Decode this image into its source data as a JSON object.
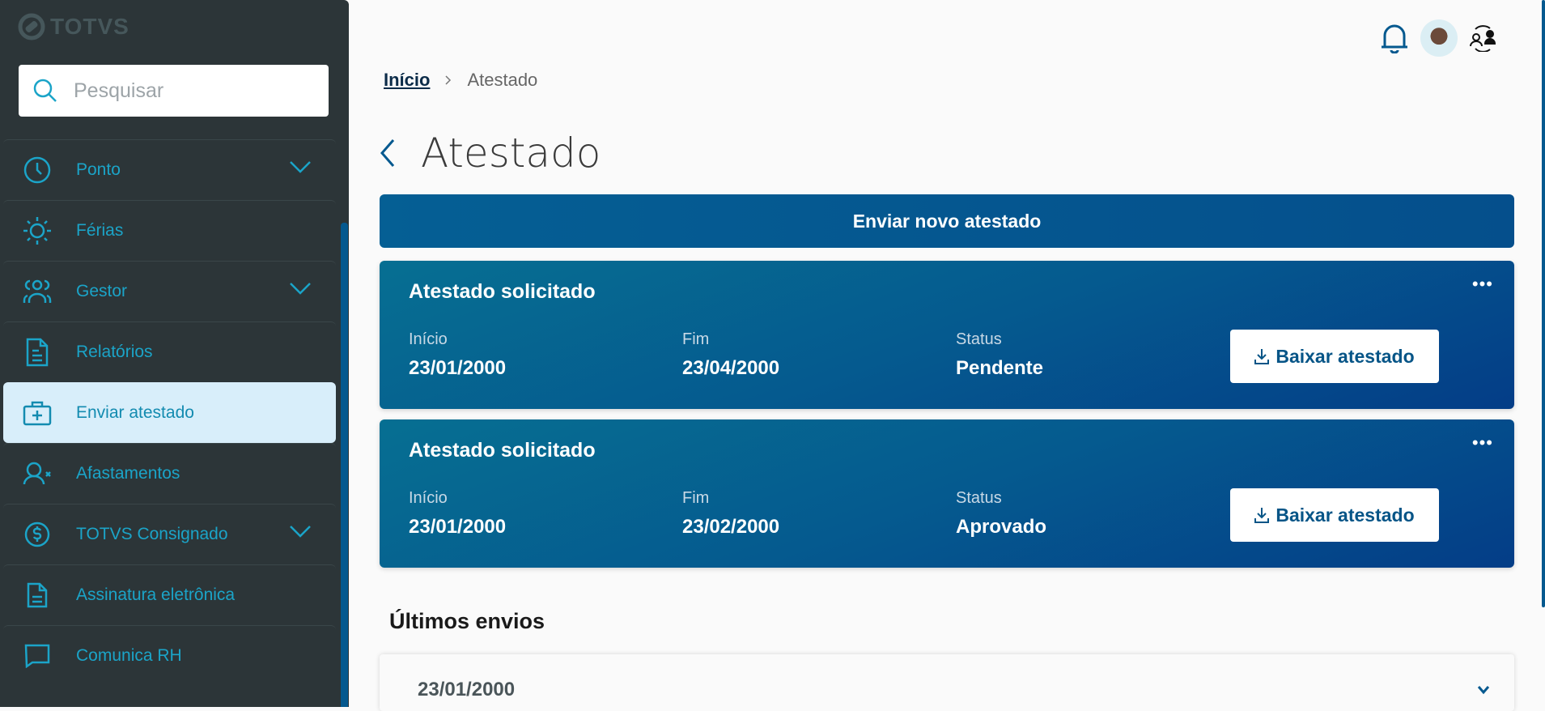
{
  "sidebar": {
    "logo": "TOTVS",
    "search_placeholder": "Pesquisar",
    "items": [
      {
        "label": "Ponto",
        "icon": "clock-icon",
        "expandable": true
      },
      {
        "label": "Férias",
        "icon": "sun-icon",
        "expandable": false
      },
      {
        "label": "Gestor",
        "icon": "group-icon",
        "expandable": true
      },
      {
        "label": "Relatórios",
        "icon": "document-icon",
        "expandable": false
      },
      {
        "label": "Enviar atestado",
        "icon": "medical-kit-icon",
        "expandable": false,
        "active": true
      },
      {
        "label": "Afastamentos",
        "icon": "user-remove-icon",
        "expandable": false
      },
      {
        "label": "TOTVS Consignado",
        "icon": "dollar-circle-icon",
        "expandable": true
      },
      {
        "label": "Assinatura eletrônica",
        "icon": "signature-document-icon",
        "expandable": false
      },
      {
        "label": "Comunica RH",
        "icon": "chat-icon",
        "expandable": false
      }
    ]
  },
  "header": {
    "icons": [
      "bell-icon",
      "avatar",
      "switch-user-icon"
    ]
  },
  "breadcrumb": {
    "home": "Início",
    "current": "Atestado"
  },
  "page_title": "Atestado",
  "new_button": "Enviar novo atestado",
  "cards": [
    {
      "title": "Atestado solicitado",
      "start_label": "Início",
      "start": "23/01/2000",
      "end_label": "Fim",
      "end": "23/04/2000",
      "status_label": "Status",
      "status": "Pendente",
      "download": "Baixar atestado"
    },
    {
      "title": "Atestado solicitado",
      "start_label": "Início",
      "start": "23/01/2000",
      "end_label": "Fim",
      "end": "23/02/2000",
      "status_label": "Status",
      "status": "Aprovado",
      "download": "Baixar atestado"
    }
  ],
  "recent": {
    "title": "Últimos envios",
    "items": [
      "23/01/2000"
    ]
  },
  "colors": {
    "sidebar_bg": "#2c3538",
    "accent": "#1ba4c8",
    "primary": "#055a8f",
    "active_bg": "#d8eefa"
  }
}
